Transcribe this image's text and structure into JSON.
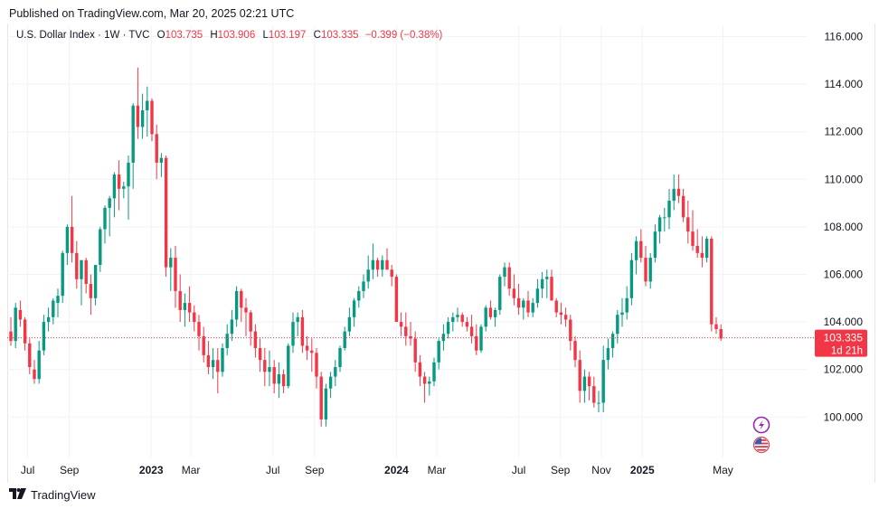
{
  "header": {
    "published": "Published on TradingView.com, Mar 20, 2025 02:21 UTC"
  },
  "legend": {
    "symbol": "U.S. Dollar Index · 1W · TVC",
    "o_label": "O",
    "o_value": "103.735",
    "h_label": "H",
    "h_value": "103.906",
    "l_label": "L",
    "l_value": "103.197",
    "c_label": "C",
    "c_value": "103.335",
    "change": "−0.399 (−0.38%)"
  },
  "price_tag": {
    "price": "103.335",
    "countdown": "1d 21h"
  },
  "footer": {
    "brand": "TradingView",
    "logo_icon": "tradingview-logo-icon"
  },
  "markers": [
    "flash-event-icon",
    "us-flag-icon"
  ],
  "colors": {
    "up": "#089981",
    "down": "#f23645",
    "grid": "#f0f3fa",
    "text": "#131722"
  },
  "chart_data": {
    "type": "candlestick",
    "interval": "1W",
    "y_ticks": [
      "116.000",
      "114.000",
      "112.000",
      "110.000",
      "108.000",
      "106.000",
      "104.000",
      "102.000",
      "100.000"
    ],
    "ylim": [
      98.3,
      116.4
    ],
    "x_ticks": [
      {
        "label": "Jul",
        "date": "2022-07-01"
      },
      {
        "label": "Sep",
        "date": "2022-09-01"
      },
      {
        "label": "2023",
        "date": "2023-01-01",
        "bold": true
      },
      {
        "label": "Mar",
        "date": "2023-03-01"
      },
      {
        "label": "Jul",
        "date": "2023-07-01"
      },
      {
        "label": "Sep",
        "date": "2023-09-01"
      },
      {
        "label": "2024",
        "date": "2024-01-01",
        "bold": true
      },
      {
        "label": "Mar",
        "date": "2024-03-01"
      },
      {
        "label": "Jul",
        "date": "2024-07-01"
      },
      {
        "label": "Sep",
        "date": "2024-09-01"
      },
      {
        "label": "Nov",
        "date": "2024-11-01"
      },
      {
        "label": "2025",
        "date": "2025-01-01",
        "bold": true
      },
      {
        "label": "May",
        "date": "2025-05-01"
      }
    ],
    "ohlc": [
      [
        103.6,
        104.2,
        103.0,
        103.2
      ],
      [
        103.2,
        104.8,
        102.9,
        104.6
      ],
      [
        104.5,
        104.9,
        103.8,
        104.1
      ],
      [
        104.1,
        104.2,
        102.8,
        103.1
      ],
      [
        103.1,
        103.3,
        101.8,
        102.1
      ],
      [
        102.0,
        102.4,
        101.4,
        101.6
      ],
      [
        101.6,
        103.2,
        101.4,
        102.8
      ],
      [
        102.8,
        104.3,
        102.6,
        104.0
      ],
      [
        104.0,
        104.6,
        103.6,
        104.2
      ],
      [
        104.2,
        105.0,
        103.9,
        104.9
      ],
      [
        104.8,
        105.4,
        104.2,
        105.1
      ],
      [
        105.1,
        107.0,
        104.8,
        106.9
      ],
      [
        106.9,
        108.1,
        106.4,
        108.0
      ],
      [
        108.0,
        109.3,
        106.5,
        106.9
      ],
      [
        106.9,
        107.4,
        105.4,
        105.8
      ],
      [
        105.8,
        106.6,
        104.7,
        106.6
      ],
      [
        106.6,
        106.7,
        105.2,
        105.6
      ],
      [
        105.6,
        106.0,
        104.3,
        105.0
      ],
      [
        105.0,
        106.4,
        104.7,
        106.4
      ],
      [
        106.4,
        108.0,
        106.1,
        107.9
      ],
      [
        107.9,
        108.9,
        107.3,
        108.8
      ],
      [
        108.8,
        109.3,
        107.6,
        109.2
      ],
      [
        109.2,
        110.3,
        108.4,
        110.2
      ],
      [
        110.2,
        110.8,
        108.7,
        109.6
      ],
      [
        109.6,
        109.9,
        109.2,
        109.7
      ],
      [
        109.7,
        111.0,
        108.3,
        110.7
      ],
      [
        110.7,
        113.2,
        109.6,
        113.1
      ],
      [
        113.1,
        114.7,
        111.7,
        112.2
      ],
      [
        112.2,
        113.6,
        111.7,
        112.9
      ],
      [
        112.9,
        113.9,
        111.8,
        113.3
      ],
      [
        113.3,
        113.4,
        111.6,
        111.9
      ],
      [
        111.9,
        112.3,
        110.0,
        110.7
      ],
      [
        110.7,
        111.1,
        110.1,
        110.9
      ],
      [
        110.9,
        111.0,
        105.9,
        106.3
      ],
      [
        106.3,
        107.1,
        105.3,
        106.7
      ],
      [
        106.7,
        107.2,
        104.6,
        105.3
      ],
      [
        105.3,
        106.0,
        104.0,
        104.5
      ],
      [
        104.5,
        105.2,
        103.8,
        104.8
      ],
      [
        104.8,
        105.5,
        104.0,
        104.4
      ],
      [
        104.4,
        104.7,
        103.6,
        104.0
      ],
      [
        104.0,
        104.3,
        102.8,
        103.4
      ],
      [
        103.4,
        103.8,
        102.3,
        102.6
      ],
      [
        102.6,
        103.2,
        101.8,
        102.1
      ],
      [
        102.1,
        102.9,
        101.6,
        102.4
      ],
      [
        102.4,
        102.9,
        101.0,
        101.9
      ],
      [
        101.9,
        103.1,
        101.7,
        102.9
      ],
      [
        102.9,
        103.9,
        102.6,
        103.5
      ],
      [
        103.5,
        104.5,
        103.2,
        104.1
      ],
      [
        104.1,
        105.5,
        103.8,
        105.3
      ],
      [
        105.3,
        105.4,
        104.0,
        104.6
      ],
      [
        104.6,
        105.0,
        103.4,
        104.4
      ],
      [
        104.4,
        104.5,
        103.0,
        103.6
      ],
      [
        103.6,
        103.9,
        102.5,
        102.9
      ],
      [
        102.9,
        103.3,
        101.9,
        102.4
      ],
      [
        102.4,
        102.9,
        101.3,
        101.9
      ],
      [
        101.9,
        102.8,
        101.3,
        102.1
      ],
      [
        102.1,
        102.4,
        101.0,
        101.4
      ],
      [
        101.4,
        102.3,
        100.8,
        101.8
      ],
      [
        101.8,
        102.0,
        101.0,
        101.3
      ],
      [
        101.3,
        103.1,
        101.2,
        103.0
      ],
      [
        103.0,
        104.4,
        102.7,
        104.0
      ],
      [
        104.0,
        104.4,
        103.4,
        104.2
      ],
      [
        104.2,
        104.5,
        102.7,
        103.0
      ],
      [
        103.0,
        103.4,
        102.4,
        102.8
      ],
      [
        102.8,
        103.3,
        101.9,
        102.7
      ],
      [
        102.7,
        102.9,
        101.2,
        101.7
      ],
      [
        101.7,
        101.9,
        99.6,
        99.9
      ],
      [
        99.9,
        101.4,
        99.6,
        101.2
      ],
      [
        101.2,
        101.9,
        100.8,
        101.7
      ],
      [
        101.7,
        102.4,
        101.3,
        102.1
      ],
      [
        102.1,
        103.0,
        101.9,
        102.9
      ],
      [
        102.9,
        103.8,
        102.8,
        103.6
      ],
      [
        103.6,
        104.6,
        103.4,
        104.2
      ],
      [
        104.2,
        105.0,
        103.8,
        104.9
      ],
      [
        104.9,
        105.5,
        104.6,
        105.3
      ],
      [
        105.3,
        106.0,
        105.0,
        105.7
      ],
      [
        105.7,
        106.8,
        105.4,
        106.2
      ],
      [
        106.2,
        107.3,
        105.8,
        106.6
      ],
      [
        106.6,
        106.7,
        105.9,
        106.2
      ],
      [
        106.2,
        106.8,
        105.9,
        106.6
      ],
      [
        106.6,
        107.1,
        106.2,
        106.2
      ],
      [
        106.2,
        106.4,
        105.5,
        105.9
      ],
      [
        105.9,
        106.0,
        104.0,
        104.0
      ],
      [
        104.0,
        104.4,
        103.4,
        103.8
      ],
      [
        103.8,
        104.4,
        103.0,
        103.4
      ],
      [
        103.4,
        104.0,
        103.0,
        103.3
      ],
      [
        103.3,
        103.6,
        101.9,
        102.3
      ],
      [
        102.3,
        102.6,
        101.3,
        101.7
      ],
      [
        101.7,
        101.9,
        100.6,
        101.4
      ],
      [
        101.4,
        101.7,
        100.9,
        101.5
      ],
      [
        101.5,
        102.5,
        101.3,
        102.3
      ],
      [
        102.3,
        103.3,
        102.0,
        103.2
      ],
      [
        103.2,
        103.9,
        102.8,
        103.5
      ],
      [
        103.5,
        104.2,
        103.3,
        104.0
      ],
      [
        104.0,
        104.4,
        103.6,
        104.2
      ],
      [
        104.2,
        104.6,
        104.0,
        104.3
      ],
      [
        104.3,
        104.4,
        103.8,
        104.0
      ],
      [
        104.0,
        104.2,
        103.6,
        103.8
      ],
      [
        103.8,
        104.3,
        103.1,
        103.4
      ],
      [
        103.4,
        103.9,
        102.6,
        102.8
      ],
      [
        102.8,
        103.9,
        102.7,
        103.8
      ],
      [
        103.8,
        104.7,
        103.6,
        104.6
      ],
      [
        104.6,
        104.9,
        104.1,
        104.2
      ],
      [
        104.2,
        104.6,
        103.8,
        104.5
      ],
      [
        104.5,
        106.0,
        104.3,
        105.9
      ],
      [
        105.9,
        106.5,
        105.5,
        106.3
      ],
      [
        106.3,
        106.5,
        105.1,
        105.4
      ],
      [
        105.4,
        106.0,
        104.7,
        105.0
      ],
      [
        105.0,
        105.6,
        104.3,
        104.6
      ],
      [
        104.6,
        105.0,
        104.1,
        104.9
      ],
      [
        104.9,
        105.3,
        104.2,
        104.4
      ],
      [
        104.4,
        105.0,
        104.2,
        104.8
      ],
      [
        104.8,
        105.8,
        104.6,
        105.4
      ],
      [
        105.4,
        106.1,
        105.0,
        105.8
      ],
      [
        105.8,
        106.2,
        105.0,
        105.9
      ],
      [
        105.9,
        106.2,
        104.9,
        104.9
      ],
      [
        104.9,
        105.0,
        104.2,
        104.4
      ],
      [
        104.4,
        104.8,
        103.9,
        104.3
      ],
      [
        104.3,
        104.6,
        103.8,
        104.1
      ],
      [
        104.1,
        104.3,
        102.8,
        103.2
      ],
      [
        103.2,
        103.4,
        102.1,
        102.4
      ],
      [
        102.4,
        102.8,
        100.6,
        101.1
      ],
      [
        101.1,
        102.0,
        100.6,
        101.7
      ],
      [
        101.7,
        101.9,
        100.7,
        101.3
      ],
      [
        101.3,
        101.7,
        100.4,
        100.6
      ],
      [
        100.6,
        101.1,
        100.2,
        100.6
      ],
      [
        100.6,
        103.0,
        100.2,
        102.4
      ],
      [
        102.4,
        103.3,
        102.0,
        102.9
      ],
      [
        102.9,
        103.6,
        102.5,
        103.5
      ],
      [
        103.5,
        104.5,
        103.1,
        104.3
      ],
      [
        104.3,
        105.0,
        103.8,
        104.4
      ],
      [
        104.4,
        105.5,
        104.1,
        105.0
      ],
      [
        105.0,
        106.9,
        104.7,
        106.6
      ],
      [
        106.6,
        107.6,
        106.0,
        107.4
      ],
      [
        107.4,
        107.9,
        106.5,
        106.7
      ],
      [
        106.7,
        107.2,
        105.5,
        105.7
      ],
      [
        105.7,
        106.9,
        105.4,
        106.7
      ],
      [
        106.7,
        108.1,
        106.5,
        107.8
      ],
      [
        107.8,
        108.5,
        107.3,
        108.4
      ],
      [
        108.4,
        108.8,
        107.8,
        108.4
      ],
      [
        108.4,
        109.6,
        107.9,
        109.1
      ],
      [
        109.1,
        110.2,
        108.7,
        109.6
      ],
      [
        109.6,
        110.2,
        109.0,
        109.3
      ],
      [
        109.3,
        109.6,
        108.2,
        108.4
      ],
      [
        108.4,
        109.1,
        107.3,
        107.8
      ],
      [
        107.8,
        108.7,
        107.0,
        107.2
      ],
      [
        107.2,
        107.9,
        106.7,
        106.9
      ],
      [
        106.9,
        107.6,
        106.3,
        106.7
      ],
      [
        106.7,
        107.6,
        106.5,
        107.5
      ],
      [
        107.5,
        107.6,
        103.6,
        103.9
      ],
      [
        103.9,
        104.2,
        103.5,
        103.7
      ],
      [
        103.7,
        103.9,
        103.2,
        103.3
      ]
    ]
  }
}
